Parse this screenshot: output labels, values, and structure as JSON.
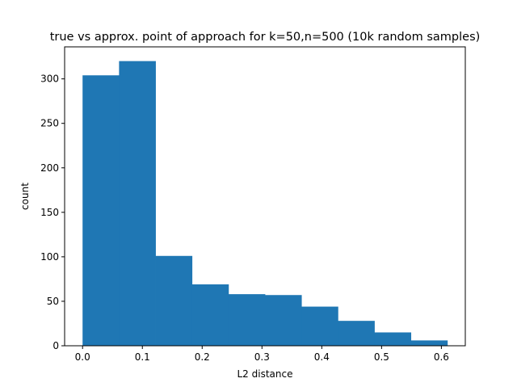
{
  "chart_data": {
    "type": "bar",
    "title": "true vs approx. point of approach for k=50,n=500 (10k random samples)",
    "xlabel": "L2 distance",
    "ylabel": "count",
    "xlim": [
      -0.03,
      0.64
    ],
    "ylim": [
      0,
      336
    ],
    "bin_edges": [
      0.0,
      0.061,
      0.122,
      0.183,
      0.244,
      0.305,
      0.366,
      0.427,
      0.488,
      0.549,
      0.61
    ],
    "values": [
      304,
      320,
      101,
      69,
      58,
      57,
      44,
      28,
      15,
      6
    ],
    "xticks": [
      0.0,
      0.1,
      0.2,
      0.3,
      0.4,
      0.5,
      0.6
    ],
    "xtick_labels": [
      "0.0",
      "0.1",
      "0.2",
      "0.3",
      "0.4",
      "0.5",
      "0.6"
    ],
    "yticks": [
      0,
      50,
      100,
      150,
      200,
      250,
      300
    ],
    "ytick_labels": [
      "0",
      "50",
      "100",
      "150",
      "200",
      "250",
      "300"
    ],
    "bar_color": "#1f77b4",
    "grid": false,
    "legend": "none"
  }
}
